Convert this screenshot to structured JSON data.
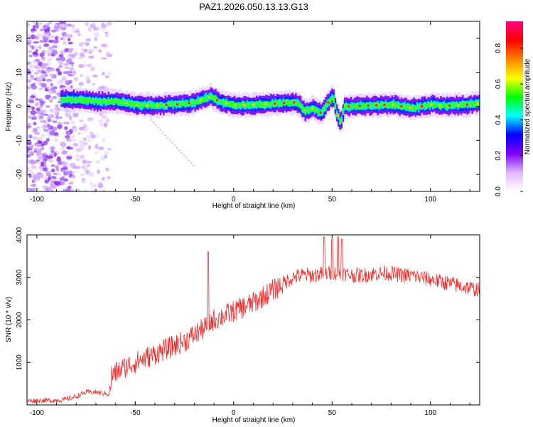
{
  "figure": {
    "title": "PAZ1.2026.050.13.13.G13"
  },
  "chart_data": [
    {
      "type": "heatmap",
      "xlabel": "Height of straight line (km)",
      "ylabel": "Frequency (Hz)",
      "xlim": [
        -105,
        125
      ],
      "ylim": [
        -25,
        25
      ],
      "xticks": [
        -100,
        -50,
        0,
        50,
        100
      ],
      "yticks": [
        -20,
        -10,
        0,
        10,
        20
      ],
      "colorbar": {
        "label": "Normalized spectral amplitude",
        "range": [
          0,
          0.95
        ],
        "ticks": [
          0.0,
          0.2,
          0.4,
          0.6,
          0.8
        ],
        "tick_labels": [
          "0.0",
          "0.2",
          "0.4",
          "0.6",
          "0.8"
        ],
        "colormap": [
          "#ffffff",
          "#e0b8ff",
          "#8000ff",
          "#0000ff",
          "#00ffff",
          "#00ff00",
          "#ffff00",
          "#ff8000",
          "#ff0000",
          "#ff0080"
        ]
      },
      "ridge": {
        "x": [
          -88,
          -80,
          -70,
          -60,
          -55,
          -50,
          -45,
          -40,
          -30,
          -20,
          -15,
          -12,
          -8,
          0,
          10,
          20,
          30,
          33,
          36,
          40,
          44,
          48,
          50,
          52,
          54,
          56,
          60,
          70,
          80,
          90,
          100,
          110,
          118,
          125
        ],
        "f": [
          2,
          2,
          1.5,
          1.5,
          1.0,
          0.5,
          0.3,
          0.2,
          0.6,
          1.2,
          2.3,
          3.0,
          1.5,
          0.3,
          0.5,
          0.8,
          1.2,
          0.5,
          -1.5,
          -0.5,
          -2.0,
          1.5,
          3.0,
          -2.0,
          -5.0,
          0.0,
          0.0,
          0.3,
          0.5,
          -0.5,
          0.5,
          0.2,
          0.5,
          1.0
        ]
      },
      "noise_region_x": [
        -105,
        -63
      ]
    },
    {
      "type": "line",
      "xlabel": "Height of straight line (km)",
      "ylabel": "SNR (10 * v/v)",
      "xlim": [
        -105,
        125
      ],
      "ylim": [
        0,
        4000
      ],
      "xticks": [
        -100,
        -50,
        0,
        50,
        100
      ],
      "yticks": [
        1000,
        2000,
        3000,
        4000
      ],
      "line_color": "#ee2c2c",
      "trend": {
        "x": [
          -105,
          -90,
          -85,
          -80,
          -75,
          -70,
          -63,
          -62,
          -55,
          -50,
          -45,
          -40,
          -35,
          -30,
          -25,
          -20,
          -15,
          -13,
          -10,
          -5,
          0,
          5,
          10,
          15,
          20,
          25,
          30,
          35,
          40,
          45,
          50,
          55,
          60,
          65,
          70,
          75,
          80,
          85,
          90,
          95,
          100,
          105,
          110,
          115,
          120,
          125
        ],
        "y": [
          100,
          110,
          130,
          200,
          300,
          300,
          250,
          700,
          900,
          1000,
          1100,
          1200,
          1300,
          1400,
          1500,
          1650,
          1800,
          1900,
          2000,
          2100,
          2200,
          2300,
          2400,
          2550,
          2700,
          2850,
          3000,
          3050,
          3050,
          3080,
          3100,
          3100,
          3050,
          3050,
          3080,
          3100,
          3100,
          3050,
          3050,
          3000,
          2950,
          2900,
          2850,
          2800,
          2750,
          2700
        ]
      },
      "spikes": [
        {
          "x": -13,
          "y": 3600
        },
        {
          "x": 46,
          "y": 3950
        },
        {
          "x": 50,
          "y": 3900
        },
        {
          "x": 53,
          "y": 3950
        },
        {
          "x": 55,
          "y": 3900
        }
      ]
    }
  ]
}
